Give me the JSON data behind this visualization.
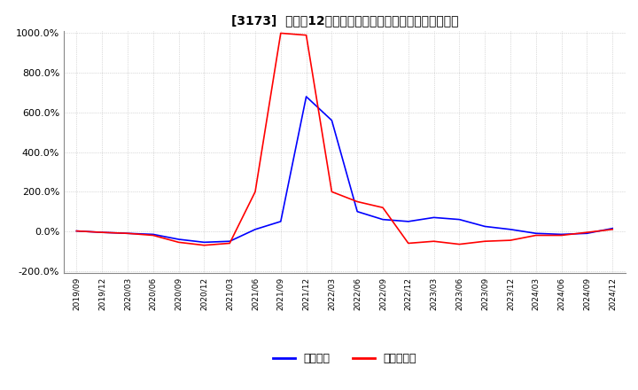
{
  "title": "[3173]  利益の12か月移動合計の対前年同期増減率の推移",
  "legend_labels": [
    "経常利益",
    "当期純利益"
  ],
  "line_colors": [
    "#0000FF",
    "#FF0000"
  ],
  "ylim": [
    -200,
    1000
  ],
  "yticks": [
    -200,
    0,
    200,
    400,
    600,
    800,
    1000
  ],
  "background_color": "#ffffff",
  "grid_color": "#bbbbbb",
  "x_labels": [
    "2019/09",
    "2019/12",
    "2020/03",
    "2020/06",
    "2020/09",
    "2020/12",
    "2021/03",
    "2021/06",
    "2021/09",
    "2021/12",
    "2022/03",
    "2022/06",
    "2022/09",
    "2022/12",
    "2023/03",
    "2023/06",
    "2023/09",
    "2023/12",
    "2024/03",
    "2024/06",
    "2024/09",
    "2024/12"
  ],
  "operating_profit": [
    2,
    -5,
    -10,
    -15,
    -40,
    -55,
    -50,
    10,
    50,
    680,
    560,
    100,
    60,
    50,
    70,
    60,
    25,
    10,
    -10,
    -15,
    -10,
    15
  ],
  "net_profit": [
    2,
    -5,
    -10,
    -20,
    -55,
    -70,
    -60,
    200,
    1000,
    990,
    200,
    150,
    120,
    -60,
    -50,
    -65,
    -50,
    -45,
    -20,
    -20,
    -5,
    10
  ]
}
